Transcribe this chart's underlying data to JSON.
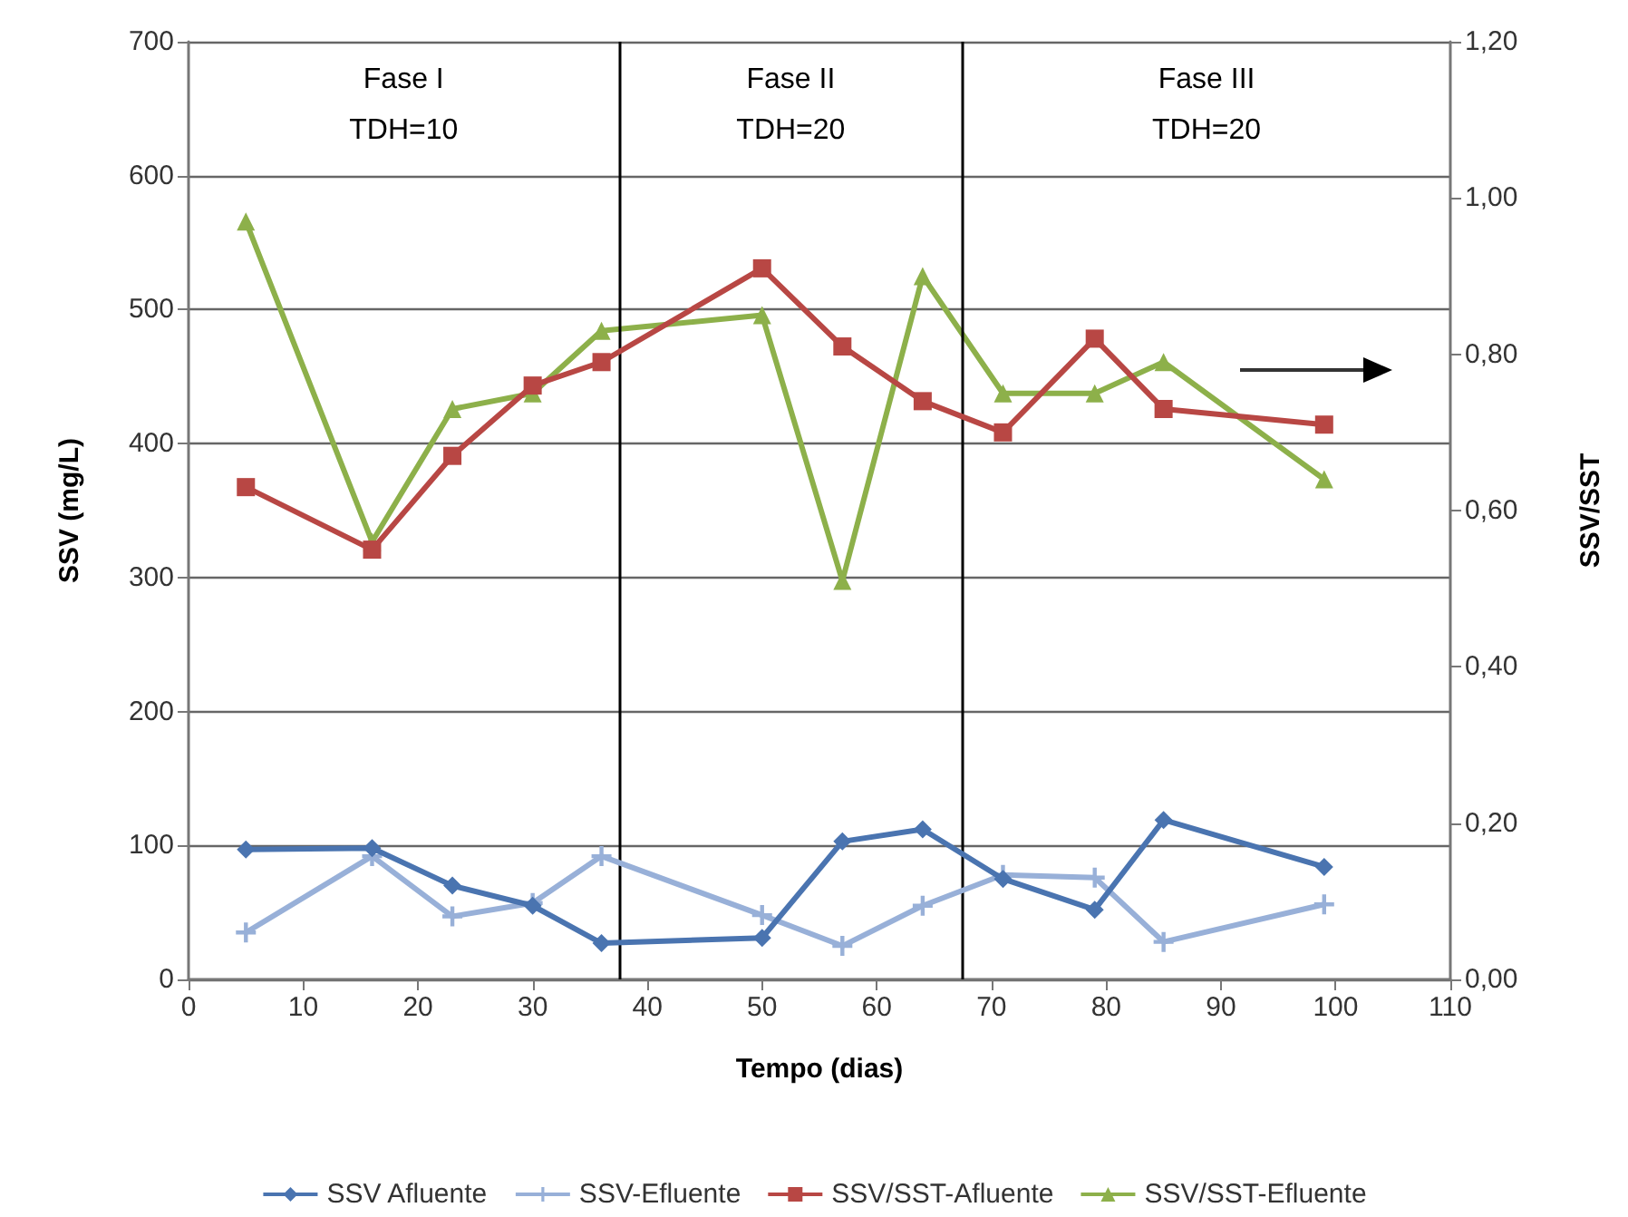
{
  "chart_data": {
    "type": "line",
    "xlabel": "Tempo (dias)",
    "ylabel": "SSV (mg/L)",
    "y2label": "SSV/SST",
    "x": [
      5,
      16,
      23,
      30,
      36,
      50,
      57,
      64,
      71,
      79,
      85,
      99
    ],
    "xlim": [
      0,
      110
    ],
    "xticks": [
      0,
      10,
      20,
      30,
      40,
      50,
      60,
      70,
      80,
      90,
      100,
      110
    ],
    "ylim": [
      0,
      700
    ],
    "yticks": [
      0,
      100,
      200,
      300,
      400,
      500,
      600,
      700
    ],
    "y2lim": [
      0,
      1.2
    ],
    "y2ticks": [
      {
        "value": 0,
        "label": "0,00"
      },
      {
        "value": 0.2,
        "label": "0,20"
      },
      {
        "value": 0.4,
        "label": "0,40"
      },
      {
        "value": 0.6,
        "label": "0,60"
      },
      {
        "value": 0.8,
        "label": "0,80"
      },
      {
        "value": 1.0,
        "label": "1,00"
      },
      {
        "value": 1.2,
        "label": "1,20"
      }
    ],
    "series": [
      {
        "name": "SSV Afluente",
        "color": "#4a74b0",
        "marker": "diamond",
        "values": [
          97,
          98,
          70,
          55,
          27,
          31,
          103,
          112,
          75,
          52,
          119,
          84
        ]
      },
      {
        "name": "SSV-Efluente",
        "color": "#98b0d8",
        "marker": "cross",
        "values": [
          35,
          92,
          47,
          57,
          92,
          48,
          25,
          55,
          78,
          76,
          28,
          56
        ]
      },
      {
        "name": "SSV/SST-Afluente",
        "color": "#b84744",
        "marker": "square",
        "axis": "y2",
        "values": [
          0.63,
          0.55,
          0.67,
          0.76,
          0.79,
          0.91,
          0.81,
          0.74,
          0.7,
          0.82,
          0.73,
          0.71
        ]
      },
      {
        "name": "SSV/SST-Efluente",
        "color": "#8db04a",
        "marker": "triangle",
        "axis": "y2",
        "values": [
          0.97,
          0.56,
          0.73,
          0.75,
          0.83,
          0.85,
          0.51,
          0.9,
          0.75,
          0.75,
          0.79,
          0.64
        ]
      }
    ],
    "ref_lines": [
      {
        "axis": "x",
        "value": 37.5,
        "color": "#000000"
      },
      {
        "axis": "x",
        "value": 67.5,
        "color": "#000000"
      }
    ],
    "annotations": [
      "Fase I\nTDH=10",
      "Fase II\nTDH=20",
      "Fase III\nTDH=20"
    ],
    "grid": "y",
    "legend": "bottom"
  }
}
